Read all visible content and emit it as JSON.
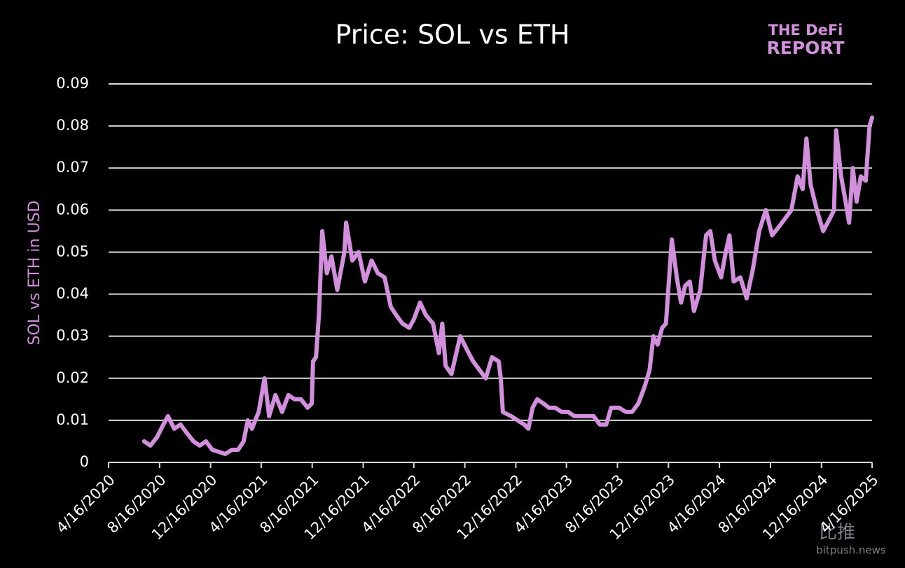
{
  "chart_data": {
    "type": "line",
    "title": "Price: SOL vs ETH",
    "y_label": "SOL vs ETH in USD",
    "color": "#d28fdc",
    "x": [
      "7/10/2020",
      "7/25/2020",
      "8/10/2020",
      "8/25/2020",
      "9/5/2020",
      "9/20/2020",
      "10/5/2020",
      "10/20/2020",
      "11/5/2020",
      "11/20/2020",
      "12/5/2020",
      "12/20/2020",
      "1/5/2021",
      "1/20/2021",
      "2/5/2021",
      "2/20/2021",
      "3/5/2021",
      "3/15/2021",
      "3/25/2021",
      "4/10/2021",
      "4/24/2021",
      "5/5/2021",
      "5/20/2021",
      "6/5/2021",
      "6/20/2021",
      "7/5/2021",
      "7/20/2021",
      "8/5/2021",
      "8/15/2021",
      "8/18/2021",
      "8/25/2021",
      "9/1/2021",
      "9/9/2021",
      "9/20/2021",
      "10/1/2021",
      "10/15/2021",
      "11/1/2021",
      "11/5/2021",
      "11/20/2021",
      "12/5/2021",
      "12/20/2021",
      "1/5/2022",
      "1/20/2022",
      "2/5/2022",
      "2/20/2022",
      "3/5/2022",
      "3/20/2022",
      "4/5/2022",
      "4/16/2022",
      "5/1/2022",
      "5/15/2022",
      "6/1/2022",
      "6/15/2022",
      "6/23/2022",
      "7/1/2022",
      "7/15/2022",
      "8/5/2022",
      "8/20/2022",
      "9/5/2022",
      "9/20/2022",
      "10/5/2022",
      "10/20/2022",
      "11/5/2022",
      "11/10/2022",
      "11/15/2022",
      "12/5/2022",
      "12/20/2022",
      "1/5/2023",
      "1/15/2023",
      "1/25/2023",
      "2/5/2023",
      "2/20/2023",
      "3/5/2023",
      "3/20/2023",
      "4/5/2023",
      "4/20/2023",
      "5/5/2023",
      "6/1/2023",
      "6/20/2023",
      "7/5/2023",
      "7/20/2023",
      "8/1/2023",
      "8/20/2023",
      "9/5/2023",
      "9/20/2023",
      "10/5/2023",
      "10/20/2023",
      "11/1/2023",
      "11/10/2023",
      "11/20/2023",
      "12/1/2023",
      "12/10/2023",
      "12/24/2023",
      "1/5/2024",
      "1/15/2024",
      "1/25/2024",
      "2/5/2024",
      "2/15/2024",
      "3/1/2024",
      "3/15/2024",
      "3/25/2024",
      "4/5/2024",
      "4/20/2024",
      "5/1/2024",
      "5/10/2024",
      "5/20/2024",
      "6/5/2024",
      "6/20/2024",
      "7/5/2024",
      "7/20/2024",
      "8/5/2024",
      "8/20/2024",
      "9/5/2024",
      "9/20/2024",
      "10/5/2024",
      "10/20/2024",
      "11/1/2024",
      "11/10/2024",
      "11/20/2024",
      "12/5/2024",
      "12/20/2024",
      "1/5/2025",
      "1/15/2025",
      "1/20/2025",
      "2/1/2025",
      "2/10/2025",
      "2/20/2025",
      "3/1/2025",
      "3/10/2025",
      "3/20/2025",
      "4/1/2025",
      "4/10/2025",
      "4/16/2025"
    ],
    "values": [
      0.005,
      0.004,
      0.006,
      0.009,
      0.011,
      0.008,
      0.009,
      0.007,
      0.005,
      0.004,
      0.005,
      0.003,
      0.0025,
      0.002,
      0.003,
      0.003,
      0.005,
      0.01,
      0.008,
      0.012,
      0.02,
      0.011,
      0.016,
      0.012,
      0.016,
      0.015,
      0.015,
      0.013,
      0.014,
      0.024,
      0.025,
      0.035,
      0.055,
      0.045,
      0.049,
      0.041,
      0.05,
      0.057,
      0.048,
      0.05,
      0.043,
      0.048,
      0.045,
      0.044,
      0.037,
      0.035,
      0.033,
      0.032,
      0.034,
      0.038,
      0.035,
      0.033,
      0.026,
      0.033,
      0.023,
      0.021,
      0.03,
      0.027,
      0.024,
      0.022,
      0.02,
      0.025,
      0.024,
      0.02,
      0.012,
      0.011,
      0.01,
      0.009,
      0.008,
      0.013,
      0.015,
      0.014,
      0.013,
      0.013,
      0.012,
      0.012,
      0.011,
      0.011,
      0.011,
      0.009,
      0.009,
      0.013,
      0.013,
      0.012,
      0.012,
      0.014,
      0.018,
      0.022,
      0.03,
      0.028,
      0.032,
      0.033,
      0.053,
      0.044,
      0.038,
      0.042,
      0.043,
      0.036,
      0.041,
      0.054,
      0.055,
      0.048,
      0.044,
      0.05,
      0.054,
      0.043,
      0.044,
      0.039,
      0.046,
      0.055,
      0.06,
      0.054,
      0.056,
      0.058,
      0.06,
      0.068,
      0.065,
      0.077,
      0.066,
      0.06,
      0.055,
      0.058,
      0.06,
      0.079,
      0.068,
      0.063,
      0.057,
      0.07,
      0.062,
      0.068,
      0.067,
      0.08,
      0.082
    ],
    "xlim": [
      "4/16/2020",
      "4/16/2025"
    ],
    "xticks": [
      "4/16/2020",
      "8/16/2020",
      "12/16/2020",
      "4/16/2021",
      "8/16/2021",
      "12/16/2021",
      "4/16/2022",
      "8/16/2022",
      "12/16/2022",
      "4/16/2023",
      "8/16/2023",
      "12/16/2023",
      "4/16/2024",
      "8/16/2024",
      "12/16/2024",
      "4/16/2025"
    ],
    "ylim": [
      0,
      0.09
    ],
    "yticks": [
      0,
      0.01,
      0.02,
      0.03,
      0.04,
      0.05,
      0.06,
      0.07,
      0.08,
      0.09
    ],
    "grid": true
  },
  "logo": {
    "line1": "THE DeFi",
    "line2": "REPORT"
  },
  "watermark": {
    "name": "比推",
    "site": "bitpush.news"
  }
}
